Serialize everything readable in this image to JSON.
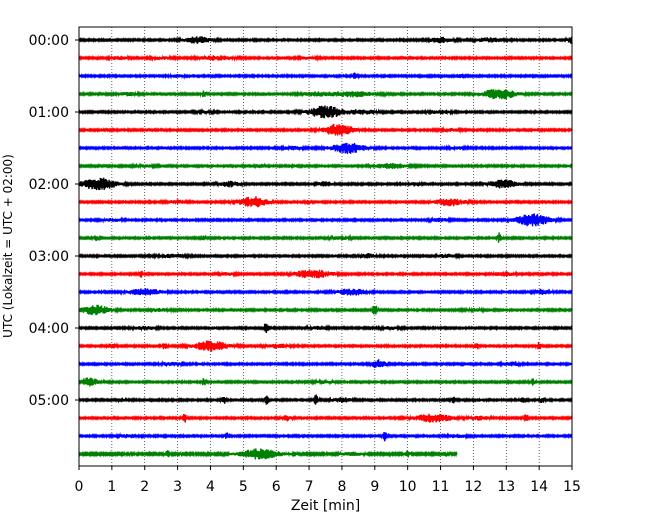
{
  "chart_data": {
    "type": "line",
    "title": "",
    "xlabel": "Zeit  [min]",
    "ylabel": "UTC (Lokalzeit = UTC + 02:00)",
    "xlim": [
      0,
      15
    ],
    "x_ticks": [
      "0",
      "1",
      "2",
      "3",
      "4",
      "5",
      "6",
      "7",
      "8",
      "9",
      "10",
      "11",
      "12",
      "13",
      "14",
      "15"
    ],
    "y_ticks": [
      "00:00",
      "01:00",
      "02:00",
      "03:00",
      "04:00",
      "05:00"
    ],
    "trace_interval_min": 15,
    "trace_count": 24,
    "last_trace_end_min": 11.5,
    "trace_colors": [
      "#000000",
      "#ff0000",
      "#0000ff",
      "#008000"
    ],
    "grid": {
      "x": "dotted",
      "y": "none"
    },
    "series": [
      {
        "start": "00:00",
        "events": [
          [
            3.6,
            0.28,
            3
          ],
          [
            11.0,
            0.22,
            2.5
          ],
          [
            15.0,
            0.1,
            3
          ],
          [
            12.5,
            0.3,
            2
          ]
        ]
      },
      {
        "start": "00:15",
        "events": [
          [
            1.2,
            0.18,
            1.5
          ],
          [
            4.2,
            0.35,
            2
          ],
          [
            2.5,
            0.2,
            1.2
          ],
          [
            7.0,
            0.2,
            1
          ]
        ]
      },
      {
        "start": "00:30",
        "events": [
          [
            8.4,
            0.05,
            3
          ],
          [
            11.6,
            0.05,
            2.5
          ],
          [
            3.0,
            0.15,
            1.2
          ]
        ]
      },
      {
        "start": "00:45",
        "events": [
          [
            3.8,
            0.05,
            3
          ],
          [
            12.8,
            0.35,
            5
          ],
          [
            1.5,
            0.2,
            1.5
          ],
          [
            8.3,
            0.5,
            2.5
          ],
          [
            7.2,
            0.3,
            1.5
          ]
        ]
      },
      {
        "start": "01:00",
        "events": [
          [
            7.5,
            0.35,
            6
          ],
          [
            8.6,
            0.3,
            2
          ],
          [
            11.0,
            0.25,
            1.5
          ],
          [
            3.8,
            0.2,
            1
          ]
        ]
      },
      {
        "start": "01:15",
        "events": [
          [
            7.9,
            0.3,
            6
          ],
          [
            11.3,
            0.2,
            1.2
          ]
        ]
      },
      {
        "start": "01:30",
        "events": [
          [
            8.2,
            0.35,
            5
          ],
          [
            6.5,
            0.2,
            1.5
          ],
          [
            11.5,
            0.2,
            1
          ]
        ]
      },
      {
        "start": "01:45",
        "events": [
          [
            9.5,
            0.35,
            2.5
          ],
          [
            5.5,
            0.1,
            1.5
          ],
          [
            2.0,
            0.2,
            1
          ]
        ]
      },
      {
        "start": "02:00",
        "events": [
          [
            0.6,
            0.35,
            6
          ],
          [
            4.6,
            0.2,
            2.5
          ],
          [
            7.5,
            0.15,
            2
          ],
          [
            12.9,
            0.3,
            4
          ],
          [
            10.2,
            0.15,
            1.5
          ]
        ]
      },
      {
        "start": "02:15",
        "events": [
          [
            5.3,
            0.3,
            5
          ],
          [
            7.0,
            0.05,
            2.5
          ],
          [
            11.3,
            0.3,
            3.5
          ],
          [
            3.0,
            0.2,
            1.5
          ]
        ]
      },
      {
        "start": "02:30",
        "events": [
          [
            13.8,
            0.35,
            6
          ],
          [
            11.0,
            0.2,
            1.5
          ],
          [
            1.0,
            0.2,
            1.2
          ]
        ]
      },
      {
        "start": "02:45",
        "events": [
          [
            0.5,
            0.05,
            3
          ],
          [
            3.8,
            0.05,
            3
          ],
          [
            12.8,
            0.05,
            5
          ],
          [
            8.0,
            0.2,
            1.5
          ]
        ]
      },
      {
        "start": "03:00",
        "events": [
          [
            2.8,
            0.3,
            1.5
          ],
          [
            8.8,
            0.2,
            2
          ],
          [
            11.2,
            0.2,
            1.5
          ]
        ]
      },
      {
        "start": "03:15",
        "events": [
          [
            1.9,
            0.05,
            3
          ],
          [
            7.1,
            0.4,
            4
          ],
          [
            12.9,
            0.2,
            2
          ],
          [
            4.5,
            0.15,
            1.2
          ]
        ]
      },
      {
        "start": "03:30",
        "events": [
          [
            2.0,
            0.35,
            3
          ],
          [
            8.3,
            0.3,
            3
          ],
          [
            14.1,
            0.15,
            2.5
          ]
        ]
      },
      {
        "start": "03:45",
        "events": [
          [
            0.5,
            0.3,
            4.5
          ],
          [
            9.0,
            0.05,
            6
          ],
          [
            2.5,
            0.2,
            1.5
          ],
          [
            12.0,
            0.2,
            1.2
          ]
        ]
      },
      {
        "start": "04:00",
        "events": [
          [
            5.7,
            0.05,
            6
          ],
          [
            2.0,
            0.25,
            1.5
          ],
          [
            7.3,
            0.2,
            1.5
          ],
          [
            9.5,
            0.2,
            1.2
          ]
        ]
      },
      {
        "start": "04:15",
        "events": [
          [
            1.0,
            0.1,
            2.5
          ],
          [
            2.6,
            0.05,
            3
          ],
          [
            4.0,
            0.35,
            5
          ],
          [
            6.0,
            0.25,
            2
          ],
          [
            12.1,
            0.05,
            3
          ],
          [
            14.0,
            0.05,
            3.5
          ]
        ]
      },
      {
        "start": "04:30",
        "events": [
          [
            9.1,
            0.15,
            4
          ],
          [
            2.8,
            0.2,
            1.5
          ],
          [
            13.2,
            0.2,
            2
          ]
        ]
      },
      {
        "start": "04:45",
        "events": [
          [
            0.3,
            0.2,
            4
          ],
          [
            3.8,
            0.05,
            3.5
          ],
          [
            13.8,
            0.05,
            3
          ],
          [
            7.5,
            0.2,
            1.2
          ]
        ]
      },
      {
        "start": "05:00",
        "events": [
          [
            1.3,
            0.05,
            2.5
          ],
          [
            4.4,
            0.05,
            3.5
          ],
          [
            5.7,
            0.05,
            4
          ],
          [
            7.2,
            0.05,
            5
          ],
          [
            8.0,
            0.2,
            2
          ],
          [
            11.4,
            0.05,
            2.5
          ],
          [
            13.5,
            0.05,
            3
          ],
          [
            14.1,
            0.05,
            2.5
          ]
        ]
      },
      {
        "start": "05:15",
        "events": [
          [
            3.2,
            0.05,
            5
          ],
          [
            6.3,
            0.1,
            2.5
          ],
          [
            10.8,
            0.4,
            4
          ],
          [
            12.2,
            0.2,
            2
          ],
          [
            13.6,
            0.05,
            4
          ]
        ]
      },
      {
        "start": "05:30",
        "events": [
          [
            4.5,
            0.05,
            3
          ],
          [
            9.3,
            0.05,
            5
          ],
          [
            1.5,
            0.2,
            1.5
          ],
          [
            11.5,
            0.2,
            1.5
          ]
        ]
      },
      {
        "start": "05:45",
        "events": [
          [
            5.5,
            0.4,
            5
          ],
          [
            2.7,
            0.05,
            3
          ],
          [
            10.0,
            0.05,
            3
          ],
          [
            8.3,
            0.2,
            1.5
          ]
        ]
      }
    ]
  }
}
